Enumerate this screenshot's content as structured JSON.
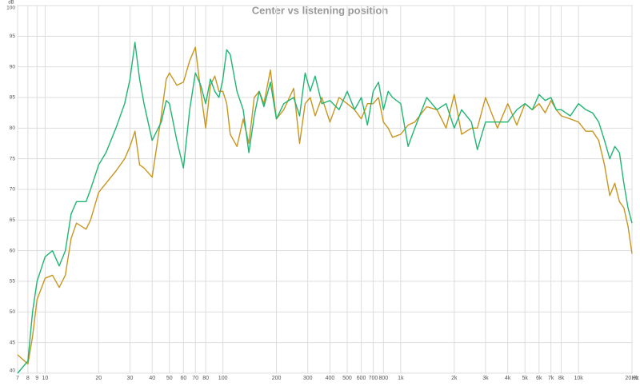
{
  "chart_data": {
    "type": "line",
    "title": "Center vs listening position",
    "y_label": "dB",
    "x_label": "Hz",
    "log_x": true,
    "grid": true,
    "x": [
      7,
      8,
      8.5,
      9,
      10,
      11,
      12,
      13,
      14,
      15,
      17,
      18,
      20,
      22,
      25,
      28,
      30,
      32,
      34,
      36,
      40,
      45,
      48,
      50,
      55,
      60,
      65,
      70,
      75,
      80,
      85,
      90,
      95,
      100,
      105,
      110,
      120,
      130,
      140,
      150,
      160,
      170,
      185,
      200,
      220,
      250,
      270,
      290,
      310,
      330,
      360,
      400,
      450,
      500,
      550,
      600,
      650,
      700,
      750,
      800,
      850,
      900,
      1000,
      1100,
      1200,
      1400,
      1600,
      1800,
      2000,
      2200,
      2500,
      2700,
      3000,
      3500,
      4000,
      4500,
      5000,
      5500,
      6000,
      6500,
      7000,
      7500,
      8000,
      9000,
      10000,
      11000,
      12000,
      13000,
      14000,
      15000,
      16000,
      17000,
      18000,
      19000,
      20000
    ],
    "series": [
      {
        "color": "#1fb573",
        "values": [
          40,
          42,
          50,
          55,
          59,
          60,
          57.5,
          60,
          66,
          68,
          68,
          70,
          74,
          76,
          80,
          84,
          88,
          94,
          88,
          84,
          78,
          81,
          84.5,
          84,
          78,
          73.5,
          83,
          89,
          87,
          84,
          88,
          86,
          85,
          88,
          92.8,
          92,
          86,
          83,
          76,
          82,
          86,
          83.5,
          87.5,
          81.5,
          84,
          85,
          82,
          89,
          86,
          88.5,
          84,
          84.5,
          83,
          86,
          83,
          85,
          80.5,
          86,
          87.5,
          83,
          86,
          85,
          84,
          77,
          80,
          85,
          83,
          84,
          80,
          83,
          81,
          76.5,
          81,
          81,
          81,
          83,
          84,
          83,
          85.5,
          84.5,
          85,
          83,
          83,
          82,
          84,
          83,
          82.5,
          81,
          78,
          75,
          77,
          76,
          71,
          67,
          64.5
        ]
      },
      {
        "color": "#c8961e",
        "values": [
          43,
          41.5,
          46,
          52,
          55.5,
          56,
          54,
          56,
          62,
          64.5,
          63.5,
          65,
          69.5,
          71,
          73,
          75,
          77,
          79.5,
          74,
          73.5,
          72,
          82,
          88,
          89,
          87,
          87.5,
          91,
          93.2,
          86,
          80,
          87,
          88.5,
          86,
          86,
          84,
          79,
          77,
          81.5,
          77.5,
          85,
          86,
          84,
          89.5,
          81.5,
          83,
          86.5,
          77.5,
          84,
          85,
          82,
          85,
          81,
          85,
          84,
          83,
          81.5,
          84,
          84,
          85,
          81,
          80,
          78.5,
          79,
          80.5,
          81,
          83.5,
          83,
          80,
          85.5,
          79,
          80,
          80,
          85,
          80,
          84,
          80.5,
          84,
          83,
          84,
          82.5,
          84.5,
          83,
          82,
          81.5,
          81,
          79.5,
          79.5,
          78,
          74,
          69,
          71,
          68,
          67,
          64,
          59.5
        ]
      }
    ],
    "xlim": [
      7,
      20000
    ],
    "ylim": [
      40,
      100
    ],
    "xticks": [
      7,
      8,
      9,
      10,
      20,
      30,
      40,
      50,
      60,
      70,
      80,
      100,
      200,
      300,
      400,
      500,
      600,
      700,
      800,
      {
        "value": 1000,
        "label": "1k"
      },
      {
        "value": 2000,
        "label": "2k"
      },
      {
        "value": 3000,
        "label": "3k"
      },
      {
        "value": 4000,
        "label": "4k"
      },
      {
        "value": 5000,
        "label": "5k"
      },
      {
        "value": 6000,
        "label": "6k"
      },
      {
        "value": 7000,
        "label": "7k"
      },
      {
        "value": 8000,
        "label": "8k"
      },
      {
        "value": 10000,
        "label": "10k"
      },
      {
        "value": 20000,
        "label": "20.0k"
      }
    ],
    "yticks": [
      40,
      45,
      50,
      55,
      60,
      65,
      70,
      75,
      80,
      85,
      90,
      95,
      100
    ]
  }
}
